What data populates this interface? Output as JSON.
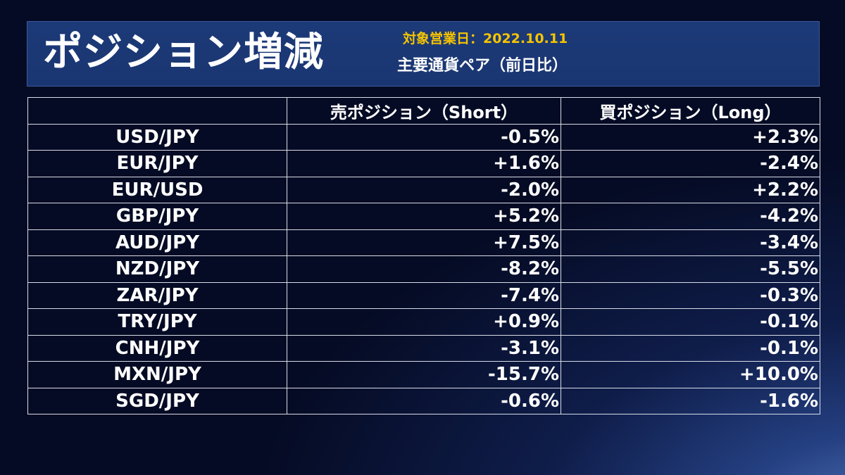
{
  "header": {
    "title": "ポジション増減",
    "date_label": "対象営業日：2022.10.11",
    "subtitle": "主要通貨ペア（前日比）"
  },
  "table": {
    "columns": [
      "",
      "売ポジション（Short）",
      "買ポジション（Long）"
    ],
    "rows": [
      {
        "pair": "USD/JPY",
        "short": "-0.5%",
        "long": "+2.3%"
      },
      {
        "pair": "EUR/JPY",
        "short": "+1.6%",
        "long": "-2.4%"
      },
      {
        "pair": "EUR/USD",
        "short": "-2.0%",
        "long": "+2.2%"
      },
      {
        "pair": "GBP/JPY",
        "short": "+5.2%",
        "long": "-4.2%"
      },
      {
        "pair": "AUD/JPY",
        "short": "+7.5%",
        "long": "-3.4%"
      },
      {
        "pair": "NZD/JPY",
        "short": "-8.2%",
        "long": "-5.5%"
      },
      {
        "pair": "ZAR/JPY",
        "short": "-7.4%",
        "long": "-0.3%"
      },
      {
        "pair": "TRY/JPY",
        "short": "+0.9%",
        "long": "-0.1%"
      },
      {
        "pair": "CNH/JPY",
        "short": "-3.1%",
        "long": "-0.1%"
      },
      {
        "pair": "MXN/JPY",
        "short": "-15.7%",
        "long": "+10.0%"
      },
      {
        "pair": "SGD/JPY",
        "short": "-0.6%",
        "long": "-1.6%"
      }
    ]
  },
  "colors": {
    "background": "#0f1d4a",
    "header_bar": "#1c3a78",
    "accent_date": "#f5c400",
    "text": "#ffffff",
    "grid": "#d8dde8"
  }
}
